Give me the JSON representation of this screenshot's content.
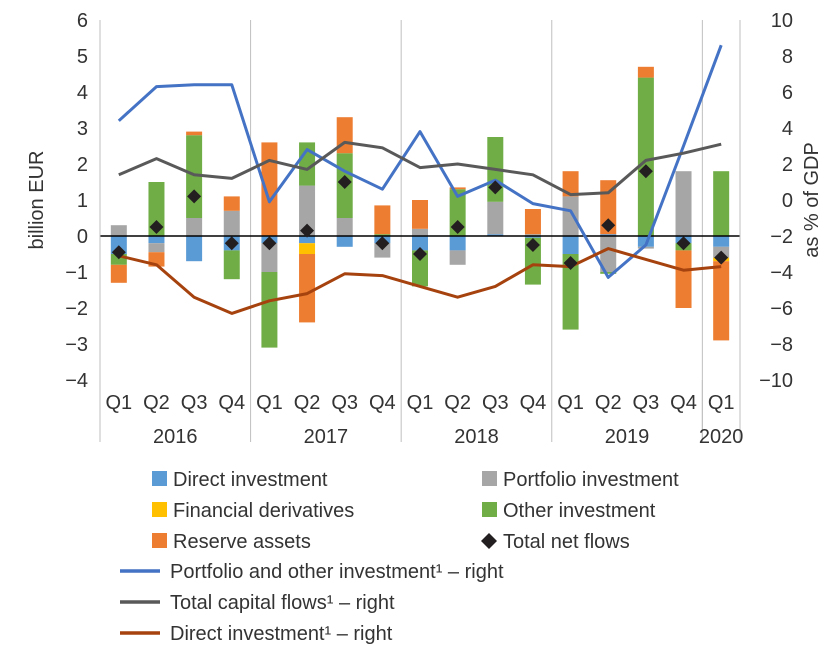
{
  "chart_data": {
    "type": "bar",
    "categories": [
      "Q1",
      "Q2",
      "Q3",
      "Q4",
      "Q1",
      "Q2",
      "Q3",
      "Q4",
      "Q1",
      "Q2",
      "Q3",
      "Q4",
      "Q1",
      "Q2",
      "Q3",
      "Q4",
      "Q1"
    ],
    "years": [
      {
        "label": "2016",
        "span": 4
      },
      {
        "label": "2017",
        "span": 4
      },
      {
        "label": "2018",
        "span": 4
      },
      {
        "label": "2019",
        "span": 4
      },
      {
        "label": "2020",
        "span": 1
      }
    ],
    "ylabel": "billion  EUR",
    "ylabel_right": "as % of GDP",
    "ylim": [
      -4,
      6
    ],
    "ylim_right": [
      -10,
      10
    ],
    "yticks": [
      "−4",
      "−3",
      "−2",
      "−1",
      "0",
      "1",
      "2",
      "3",
      "4",
      "5",
      "6"
    ],
    "yticks_right": [
      "−10",
      "−8",
      "−6",
      "−4",
      "−2",
      "0",
      "2",
      "4",
      "6",
      "8",
      "10"
    ],
    "grid": "vertical year separators",
    "legend_position": "bottom",
    "series": [
      {
        "name": "Direct investment",
        "kind": "bar",
        "color": "#5b9bd5",
        "values": [
          -0.5,
          -0.2,
          -0.7,
          -0.4,
          -0.2,
          -0.2,
          -0.3,
          -0.2,
          -0.4,
          -0.4,
          0.05,
          -0.05,
          -0.5,
          0.05,
          -0.3,
          -0.2,
          -0.3
        ]
      },
      {
        "name": "Portfolio investment",
        "kind": "bar",
        "color": "#a6a6a6",
        "values": [
          0.3,
          -0.25,
          0.5,
          0.7,
          -0.8,
          1.4,
          0.5,
          -0.4,
          0.2,
          -0.4,
          0.9,
          0.05,
          1.1,
          -1.0,
          -0.05,
          1.8,
          -0.3
        ]
      },
      {
        "name": "Financial derivatives",
        "kind": "bar",
        "color": "#ffc000",
        "values": [
          0.0,
          0.0,
          0.0,
          0.0,
          0.0,
          -0.3,
          0.0,
          0.0,
          0.0,
          0.0,
          0.0,
          0.0,
          0.0,
          0.0,
          0.0,
          0.0,
          -0.1
        ]
      },
      {
        "name": "Other investment",
        "kind": "bar",
        "color": "#70ad47",
        "values": [
          -0.3,
          1.5,
          2.3,
          -0.8,
          -2.1,
          1.2,
          1.8,
          0.05,
          -1.0,
          1.3,
          1.8,
          -1.3,
          -2.1,
          -0.05,
          4.4,
          -0.2,
          1.8
        ]
      },
      {
        "name": "Reserve assets",
        "kind": "bar",
        "color": "#ed7d31",
        "values": [
          -0.5,
          -0.4,
          0.1,
          0.4,
          2.6,
          -1.9,
          1.0,
          0.8,
          0.8,
          0.05,
          0.0,
          0.7,
          0.7,
          1.5,
          0.3,
          -1.6,
          -2.2
        ]
      },
      {
        "name": "Total net flows",
        "kind": "marker",
        "color": "#231f20",
        "values": [
          -0.45,
          0.25,
          1.1,
          -0.2,
          -0.2,
          0.15,
          1.5,
          -0.2,
          -0.5,
          0.25,
          1.35,
          -0.25,
          -0.75,
          0.3,
          1.8,
          -0.2,
          -0.6
        ]
      },
      {
        "name": "Portfolio and other investment¹ – right",
        "kind": "line",
        "axis": "right",
        "color": "#4472c4",
        "values": [
          4.4,
          6.3,
          6.4,
          6.4,
          -0.1,
          2.8,
          1.6,
          0.6,
          3.8,
          0.2,
          1.1,
          -0.2,
          -0.6,
          -4.3,
          -2.5,
          3.0,
          8.6
        ]
      },
      {
        "name": "Total capital flows¹ – right",
        "kind": "line",
        "axis": "right",
        "color": "#595959",
        "values": [
          1.4,
          2.3,
          1.4,
          1.2,
          2.2,
          1.7,
          3.2,
          2.9,
          1.8,
          2.0,
          1.7,
          1.4,
          0.3,
          0.4,
          2.2,
          2.6,
          3.1
        ]
      },
      {
        "name": "Direct investment¹ – right",
        "kind": "line",
        "axis": "right",
        "color": "#a5420e",
        "values": [
          -3.1,
          -3.6,
          -5.4,
          -6.3,
          -5.6,
          -5.2,
          -4.1,
          -4.2,
          -4.8,
          -5.4,
          -4.8,
          -3.6,
          -3.7,
          -2.7,
          -3.3,
          -3.9,
          -3.7
        ]
      }
    ]
  }
}
